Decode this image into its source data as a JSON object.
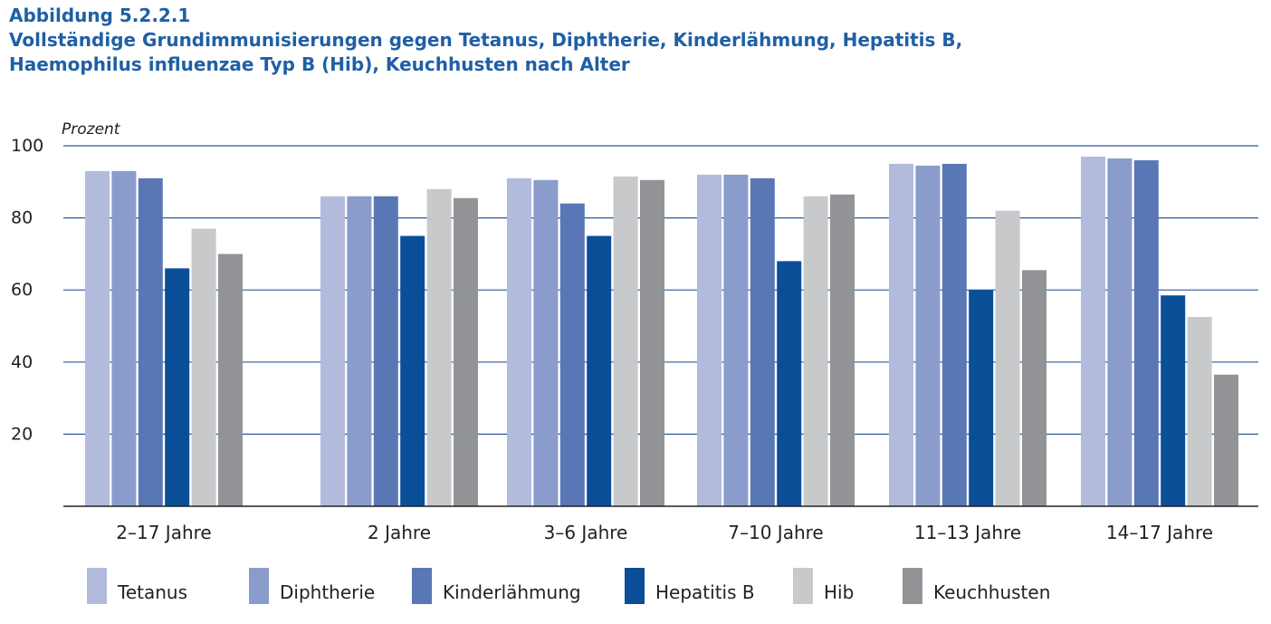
{
  "header": {
    "figure_label": "Abbildung 5.2.2.1",
    "title_line1": "Vollständige Grundimmunisierungen gegen Tetanus, Diphtherie, Kinderlähmung, Hepatitis B,",
    "title_line2": "Haemophilus influenzae Typ B (Hib), Keuchhusten nach Alter"
  },
  "chart_data": {
    "type": "bar",
    "ylabel": "Prozent",
    "ylim": [
      0,
      100
    ],
    "yticks": [
      20,
      40,
      60,
      80,
      100
    ],
    "grid": true,
    "legend_position": "bottom",
    "categories": [
      "2–17 Jahre",
      "2 Jahre",
      "3–6 Jahre",
      "7–10 Jahre",
      "11–13 Jahre",
      "14–17 Jahre"
    ],
    "series": [
      {
        "name": "Tetanus",
        "color": "#b3bbdd",
        "values": [
          93,
          86,
          91,
          92,
          95,
          97
        ]
      },
      {
        "name": "Diphtherie",
        "color": "#8a9ccb",
        "values": [
          93,
          86,
          90.5,
          92,
          94.5,
          96.5
        ]
      },
      {
        "name": "Kinderlähmung",
        "color": "#5a77b5",
        "values": [
          91,
          86,
          84,
          91,
          95,
          96
        ]
      },
      {
        "name": "Hepatitis B",
        "color": "#0a4e98",
        "values": [
          66,
          75,
          75,
          68,
          60,
          58.5
        ]
      },
      {
        "name": "Hib",
        "color": "#c8c9cb",
        "values": [
          77,
          88,
          91.5,
          86,
          82,
          52.5
        ]
      },
      {
        "name": "Keuchhusten",
        "color": "#929396",
        "values": [
          70,
          85.5,
          90.5,
          86.5,
          65.5,
          36.5
        ]
      }
    ]
  }
}
